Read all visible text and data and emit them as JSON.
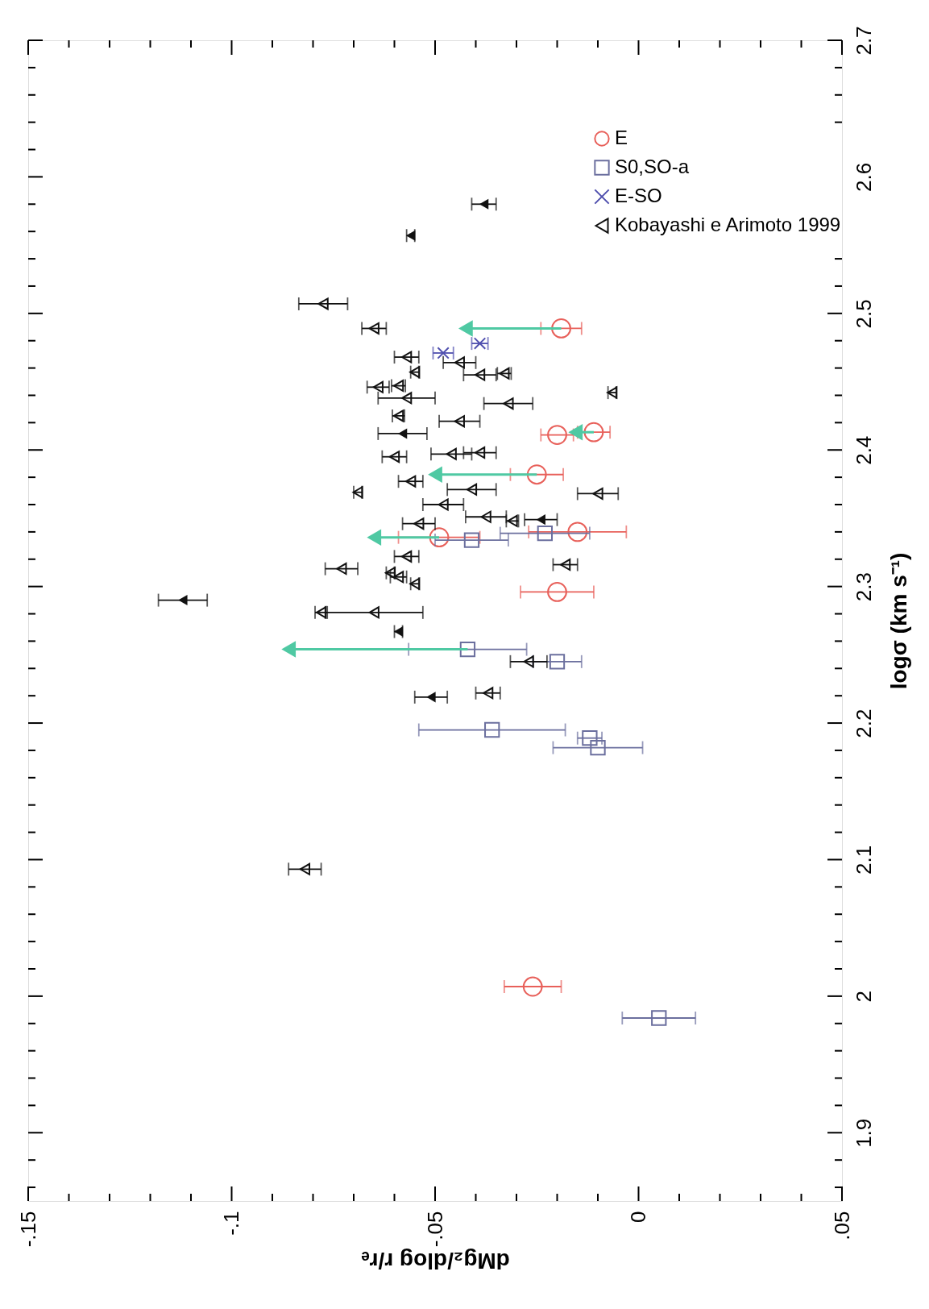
{
  "chart_data": {
    "type": "scatter",
    "xlabel": "dMg₂/dlog r/rₑ",
    "ylabel": "logσ (km s⁻¹)",
    "xlim": [
      -0.15,
      0.05
    ],
    "ylim": [
      1.85,
      2.7
    ],
    "xticks": [
      {
        "value": -0.15,
        "label": "-.15"
      },
      {
        "value": -0.14,
        "label": null
      },
      {
        "value": -0.13,
        "label": null
      },
      {
        "value": -0.12,
        "label": null
      },
      {
        "value": -0.11,
        "label": null
      },
      {
        "value": -0.1,
        "label": "-.1"
      },
      {
        "value": -0.09,
        "label": null
      },
      {
        "value": -0.08,
        "label": null
      },
      {
        "value": -0.07,
        "label": null
      },
      {
        "value": -0.06,
        "label": null
      },
      {
        "value": -0.05,
        "label": "-.05"
      },
      {
        "value": -0.04,
        "label": null
      },
      {
        "value": -0.03,
        "label": null
      },
      {
        "value": -0.02,
        "label": null
      },
      {
        "value": -0.01,
        "label": null
      },
      0,
      {
        "value": 0.01,
        "label": null
      },
      {
        "value": 0.02,
        "label": null
      },
      {
        "value": 0.03,
        "label": null
      },
      {
        "value": 0.04,
        "label": null
      },
      {
        "value": 0.05,
        "label": ".05"
      }
    ],
    "yticks": [
      {
        "value": 1.86,
        "label": null
      },
      {
        "value": 1.88,
        "label": null
      },
      1.9,
      {
        "value": 1.92,
        "label": null
      },
      {
        "value": 1.94,
        "label": null
      },
      {
        "value": 1.96,
        "label": null
      },
      {
        "value": 1.98,
        "label": null
      },
      2,
      {
        "value": 2.02,
        "label": null
      },
      {
        "value": 2.04,
        "label": null
      },
      {
        "value": 2.06,
        "label": null
      },
      {
        "value": 2.08,
        "label": null
      },
      2.1,
      {
        "value": 2.12,
        "label": null
      },
      {
        "value": 2.14,
        "label": null
      },
      {
        "value": 2.16,
        "label": null
      },
      {
        "value": 2.18,
        "label": null
      },
      2.2,
      {
        "value": 2.22,
        "label": null
      },
      {
        "value": 2.24,
        "label": null
      },
      {
        "value": 2.26,
        "label": null
      },
      {
        "value": 2.28,
        "label": null
      },
      2.3,
      {
        "value": 2.32,
        "label": null
      },
      {
        "value": 2.34,
        "label": null
      },
      {
        "value": 2.36,
        "label": null
      },
      {
        "value": 2.38,
        "label": null
      },
      2.4,
      {
        "value": 2.42,
        "label": null
      },
      {
        "value": 2.44,
        "label": null
      },
      {
        "value": 2.46,
        "label": null
      },
      {
        "value": 2.48,
        "label": null
      },
      2.5,
      {
        "value": 2.52,
        "label": null
      },
      {
        "value": 2.54,
        "label": null
      },
      {
        "value": 2.56,
        "label": null
      },
      {
        "value": 2.58,
        "label": null
      },
      2.6,
      {
        "value": 2.62,
        "label": null
      },
      {
        "value": 2.64,
        "label": null
      },
      {
        "value": 2.66,
        "label": null
      },
      {
        "value": 2.68,
        "label": null
      },
      2.7
    ],
    "grid": false,
    "legend": "top right",
    "series": [
      {
        "name": "E",
        "color": "#e8605a",
        "marker": "circle",
        "x": [
          -0.019,
          -0.025,
          -0.02,
          -0.011,
          -0.049,
          -0.015,
          -0.02,
          -0.026
        ],
        "values": [
          2.489,
          2.382,
          2.411,
          2.413,
          2.336,
          2.34,
          2.296,
          2.007
        ],
        "xerrors": [
          0.005,
          0.0065,
          0.004,
          0.004,
          0.01,
          0.012,
          0.009,
          0.007
        ]
      },
      {
        "name": "S0,SO-a",
        "color": "#6b6f9e",
        "marker": "square",
        "x": [
          -0.041,
          -0.023,
          -0.042,
          -0.02,
          -0.036,
          -0.012,
          -0.01,
          0.005
        ],
        "values": [
          2.334,
          2.339,
          2.254,
          2.245,
          2.195,
          2.189,
          2.182,
          1.984
        ],
        "xerrors": [
          0.009,
          0.011,
          0.0145,
          0.006,
          0.018,
          0.003,
          0.011,
          0.009
        ]
      },
      {
        "name": "E-SO",
        "color": "#4f4fae",
        "marker": "cross",
        "x": [
          -0.048,
          -0.039
        ],
        "values": [
          2.471,
          2.478
        ],
        "xerrors": [
          0.0025,
          0.002
        ]
      },
      {
        "name": "Kobayashi e Arimoto 1999",
        "color": "#111111",
        "marker": "triangle",
        "x": [
          -0.0775,
          -0.065,
          -0.057,
          -0.055,
          -0.044,
          -0.039,
          -0.033,
          -0.064,
          -0.059,
          -0.057,
          -0.032,
          -0.0065,
          -0.059,
          -0.044,
          -0.046,
          -0.039,
          -0.06,
          -0.056,
          -0.069,
          -0.041,
          -0.01,
          -0.048,
          -0.054,
          -0.0375,
          -0.031,
          -0.018,
          -0.057,
          -0.073,
          -0.061,
          -0.059,
          -0.055,
          -0.078,
          -0.065,
          -0.027,
          -0.037,
          -0.082
        ],
        "values": [
          2.507,
          2.489,
          2.468,
          2.457,
          2.464,
          2.455,
          2.456,
          2.446,
          2.447,
          2.438,
          2.434,
          2.442,
          2.425,
          2.421,
          2.397,
          2.398,
          2.395,
          2.377,
          2.369,
          2.371,
          2.368,
          2.36,
          2.346,
          2.351,
          2.348,
          2.316,
          2.322,
          2.313,
          2.31,
          2.307,
          2.302,
          2.281,
          2.281,
          2.245,
          2.222,
          2.093
        ],
        "xerrors": [
          0.006,
          0.003,
          0.003,
          0.001,
          0.004,
          0.004,
          0.0017,
          0.0027,
          0.0017,
          0.007,
          0.006,
          0.001,
          0.0015,
          0.005,
          0.005,
          0.004,
          0.003,
          0.003,
          0.001,
          0.006,
          0.005,
          0.005,
          0.004,
          0.005,
          0.0015,
          0.003,
          0.003,
          0.004,
          0.001,
          0.002,
          0.001,
          0.0015,
          0.012,
          0.0045,
          0.003,
          0.004
        ]
      },
      {
        "color": "#111111",
        "marker": "triangle",
        "x": [
          -0.038,
          -0.056,
          -0.058,
          -0.024,
          -0.112,
          -0.059,
          -0.051
        ],
        "values": [
          2.58,
          2.557,
          2.412,
          2.349,
          2.29,
          2.267,
          2.219
        ],
        "xerrors": [
          0.003,
          0.001,
          0.006,
          0.004,
          0.006,
          0.001,
          0.004
        ]
      },
      {
        "type": "line",
        "color": "#4fc9a3",
        "x": [
          -0.019,
          -0.0425
        ],
        "values": [
          2.489,
          2.489
        ]
      },
      {
        "type": "line",
        "color": "#4fc9a3",
        "x": [
          -0.025,
          -0.05
        ],
        "values": [
          2.382,
          2.382
        ]
      },
      {
        "type": "line",
        "color": "#4fc9a3",
        "x": [
          -0.011,
          -0.0155
        ],
        "values": [
          2.413,
          2.413
        ]
      },
      {
        "type": "line",
        "color": "#4fc9a3",
        "x": [
          -0.049,
          -0.065
        ],
        "values": [
          2.336,
          2.336
        ]
      },
      {
        "type": "line",
        "color": "#4fc9a3",
        "x": [
          -0.042,
          -0.086
        ],
        "values": [
          2.254,
          2.254
        ]
      }
    ]
  }
}
